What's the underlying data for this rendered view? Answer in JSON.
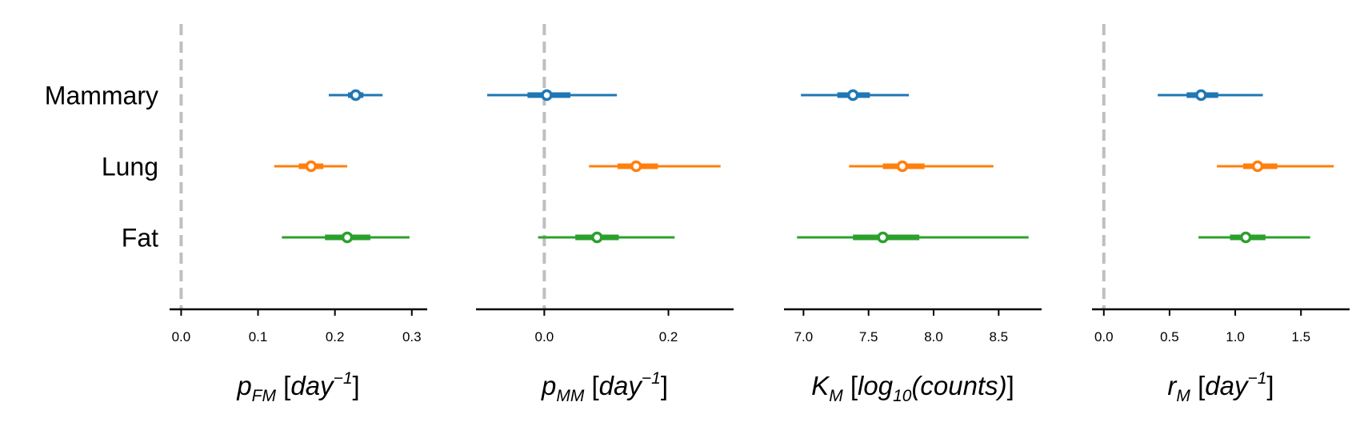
{
  "chart_data": {
    "type": "forest",
    "categories": [
      "Mammary",
      "Lung",
      "Fat"
    ],
    "category_colors": [
      "#1f77b4",
      "#ff7f0e",
      "#2ca02c"
    ],
    "reference_line_color": "#bfbfbf",
    "panels": [
      {
        "xlabel_parts": {
          "main": "p",
          "sub": "FM",
          "unit_open": " [",
          "unit": "day",
          "sup": "−1",
          "unit_close": "]"
        },
        "xlim": [
          -0.015,
          0.32
        ],
        "xticks": [
          0.0,
          0.1,
          0.2,
          0.3
        ],
        "xtick_labels": [
          "0.0",
          "0.1",
          "0.2",
          "0.3"
        ],
        "reference_line": 0.0,
        "rows": [
          {
            "category": "Mammary",
            "point": 0.227,
            "inner": [
              0.217,
              0.237
            ],
            "outer": [
              0.192,
              0.262
            ]
          },
          {
            "category": "Lung",
            "point": 0.169,
            "inner": [
              0.153,
              0.185
            ],
            "outer": [
              0.121,
              0.216
            ]
          },
          {
            "category": "Fat",
            "point": 0.216,
            "inner": [
              0.187,
              0.246
            ],
            "outer": [
              0.131,
              0.297
            ]
          }
        ]
      },
      {
        "xlabel_parts": {
          "main": "p",
          "sub": "MM",
          "unit_open": " [",
          "unit": "day",
          "sup": "−1",
          "unit_close": "]"
        },
        "xlim": [
          -0.11,
          0.305
        ],
        "xticks": [
          0.0,
          0.2
        ],
        "xtick_labels": [
          "0.0",
          "0.2"
        ],
        "reference_line": 0.0,
        "rows": [
          {
            "category": "Mammary",
            "point": 0.004,
            "inner": [
              -0.027,
              0.042
            ],
            "outer": [
              -0.092,
              0.117
            ]
          },
          {
            "category": "Lung",
            "point": 0.148,
            "inner": [
              0.118,
              0.183
            ],
            "outer": [
              0.072,
              0.284
            ]
          },
          {
            "category": "Fat",
            "point": 0.085,
            "inner": [
              0.05,
              0.12
            ],
            "outer": [
              -0.01,
              0.21
            ]
          }
        ]
      },
      {
        "xlabel_parts": {
          "main": "K",
          "sub": "M",
          "unit_open": " [",
          "unit": "log",
          "unit_sub": "10",
          "unit_rest": "(counts)",
          "unit_close": "]"
        },
        "xlim": [
          6.85,
          8.83
        ],
        "xticks": [
          7.0,
          7.5,
          8.0,
          8.5
        ],
        "xtick_labels": [
          "7.0",
          "7.5",
          "8.0",
          "8.5"
        ],
        "reference_line": null,
        "rows": [
          {
            "category": "Mammary",
            "point": 7.38,
            "inner": [
              7.26,
              7.51
            ],
            "outer": [
              6.98,
              7.81
            ]
          },
          {
            "category": "Lung",
            "point": 7.76,
            "inner": [
              7.61,
              7.93
            ],
            "outer": [
              7.35,
              8.46
            ]
          },
          {
            "category": "Fat",
            "point": 7.61,
            "inner": [
              7.38,
              7.89
            ],
            "outer": [
              6.95,
              8.73
            ]
          }
        ]
      },
      {
        "xlabel_parts": {
          "main": "r",
          "sub": "M",
          "unit_open": " [",
          "unit": "day",
          "sup": "−1",
          "unit_close": "]"
        },
        "xlim": [
          -0.09,
          1.87
        ],
        "xticks": [
          0.0,
          0.5,
          1.0,
          1.5
        ],
        "xtick_labels": [
          "0.0",
          "0.5",
          "1.0",
          "1.5"
        ],
        "reference_line": 0.0,
        "rows": [
          {
            "category": "Mammary",
            "point": 0.74,
            "inner": [
              0.63,
              0.87
            ],
            "outer": [
              0.41,
              1.21
            ]
          },
          {
            "category": "Lung",
            "point": 1.17,
            "inner": [
              1.06,
              1.32
            ],
            "outer": [
              0.86,
              1.75
            ]
          },
          {
            "category": "Fat",
            "point": 1.08,
            "inner": [
              0.96,
              1.23
            ],
            "outer": [
              0.72,
              1.57
            ]
          }
        ]
      }
    ]
  }
}
